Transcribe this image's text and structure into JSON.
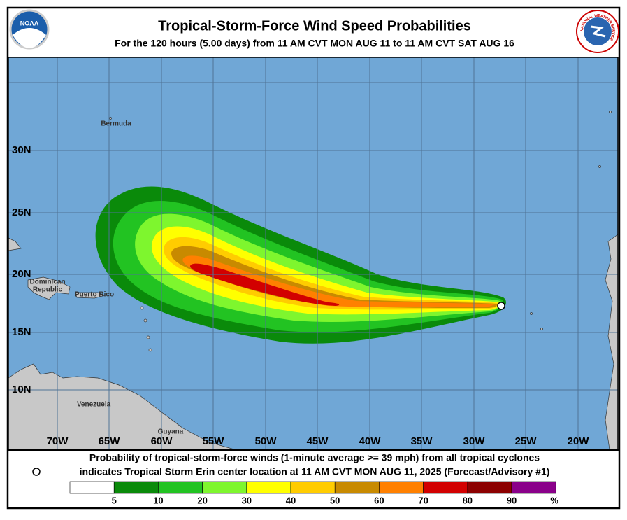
{
  "header": {
    "title": "Tropical-Storm-Force Wind Speed Probabilities",
    "subtitle": "For the 120 hours (5.00 days) from 11 AM CVT MON AUG 11 to 11 AM CVT SAT AUG 16",
    "left_logo": "NOAA",
    "right_logo": "NATIONAL WEATHER SERVICE"
  },
  "map": {
    "places": [
      [
        "Bermuda"
      ],
      [
        "Dominican",
        "Republic"
      ],
      [
        "Puerto Rico"
      ],
      [
        "Venezuela"
      ],
      [
        "Guyana"
      ]
    ],
    "latitudes": [
      "30N",
      "25N",
      "20N",
      "15N",
      "10N"
    ],
    "longitudes": [
      "70W",
      "65W",
      "60W",
      "55W",
      "50W",
      "45W",
      "40W",
      "35W",
      "30W",
      "25W",
      "20W"
    ]
  },
  "footer": {
    "description": "Probability of tropical-storm-force winds (1-minute average >= 39 mph) from all tropical cyclones",
    "marker_note": "indicates Tropical Storm Erin center location at 11 AM CVT MON AUG 11, 2025 (Forecast/Advisory #1)"
  },
  "legend": {
    "labels": [
      5,
      10,
      20,
      30,
      40,
      50,
      60,
      70,
      80,
      90
    ],
    "unit": "%",
    "colors": [
      "#ffffff",
      "#0a8a0a",
      "#22c322",
      "#7ef62e",
      "#ffff00",
      "#ffcc00",
      "#c88a00",
      "#ff8000",
      "#d20000",
      "#8c0000",
      "#8a008a"
    ]
  }
}
